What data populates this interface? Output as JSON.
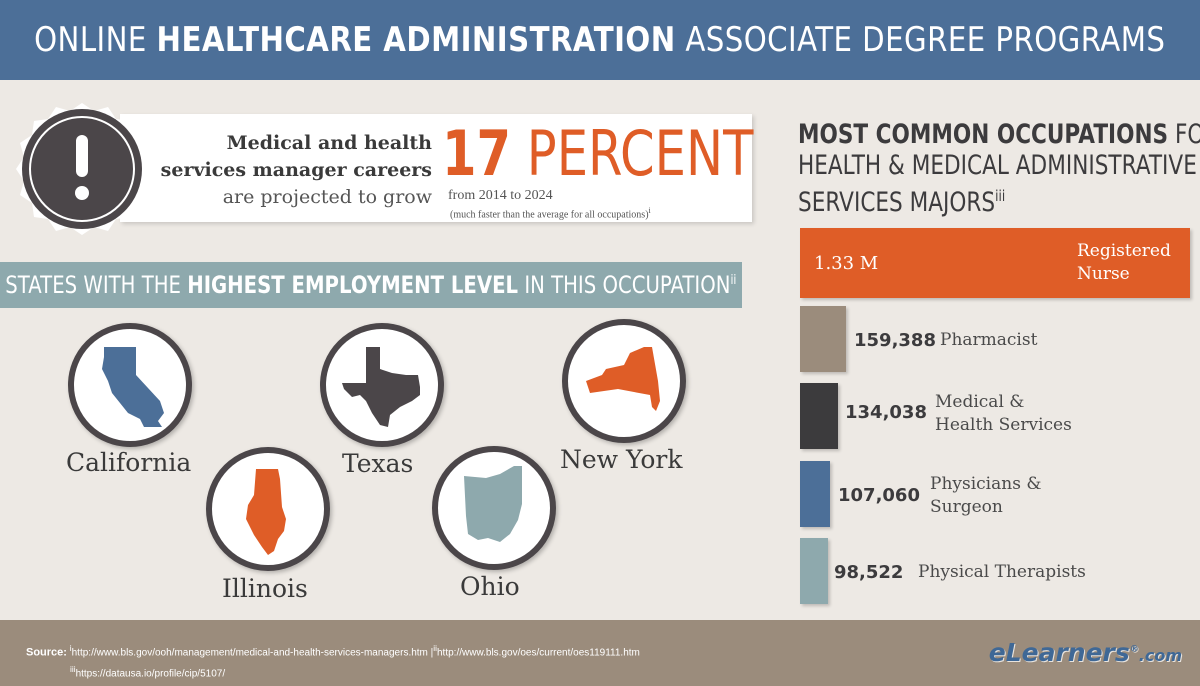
{
  "header": {
    "title_pre": "ONLINE ",
    "title_bold": "HEALTHCARE ADMINISTRATION",
    "title_post": " ASSOCIATE DEGREE PROGRAMS"
  },
  "growth": {
    "line1": "Medical and health",
    "line2": "services manager careers",
    "line3": "are projected to grow",
    "big_num": "17",
    "big_word": " PERCENT",
    "range": "from 2014 to 2024",
    "note": "(much faster than the average for all occupations)",
    "note_ref": "i"
  },
  "states": {
    "banner_pre": "STATES WITH THE ",
    "banner_bold": "HIGHEST EMPLOYMENT LEVEL",
    "banner_post": " IN THIS OCCUPATION",
    "banner_ref": "ii",
    "items": [
      {
        "name": "California",
        "color": "#4c6f98"
      },
      {
        "name": "Illinois",
        "color": "#df5d27"
      },
      {
        "name": "Texas",
        "color": "#4b4649"
      },
      {
        "name": "Ohio",
        "color": "#8ea9ad"
      },
      {
        "name": "New York",
        "color": "#df5d27"
      }
    ]
  },
  "occupations": {
    "title_l1_bold": "MOST COMMON OCCUPATIONS",
    "title_l1_post": " FOR",
    "title_l2": "HEALTH & MEDICAL ADMINISTRATIVE",
    "title_l3": "SERVICES MAJORS",
    "title_ref": "iii",
    "items": [
      {
        "value": "1.33 M",
        "label_l1": "Registered",
        "label_l2": "Nurse",
        "count": 1330000,
        "color": "#df5d27"
      },
      {
        "value": "159,388",
        "label_l1": "Pharmacist",
        "label_l2": "",
        "count": 159388,
        "color": "#9b8c7c"
      },
      {
        "value": "134,038",
        "label_l1": "Medical &",
        "label_l2": "Health Services",
        "count": 134038,
        "color": "#3c3b3d"
      },
      {
        "value": "107,060",
        "label_l1": "Physicians &",
        "label_l2": "Surgeon",
        "count": 107060,
        "color": "#4c6f98"
      },
      {
        "value": "98,522",
        "label_l1": "Physical Therapists",
        "label_l2": "",
        "count": 98522,
        "color": "#8ea9ad"
      }
    ]
  },
  "footer": {
    "source_label": "Source:",
    "ref1": "i",
    "url1": "http://www.bls.gov/ooh/management/medical-and-health-services-managers.htm",
    "sep": "|",
    "ref2": "ii",
    "url2": "http://www.bls.gov/oes/current/oes119111.htm",
    "ref3": "iii",
    "url3": "https://datausa.io/profile/cip/5107/",
    "logo_e": "e",
    "logo_rest": "Learners",
    "logo_reg": "®",
    "logo_com": ".com"
  }
}
